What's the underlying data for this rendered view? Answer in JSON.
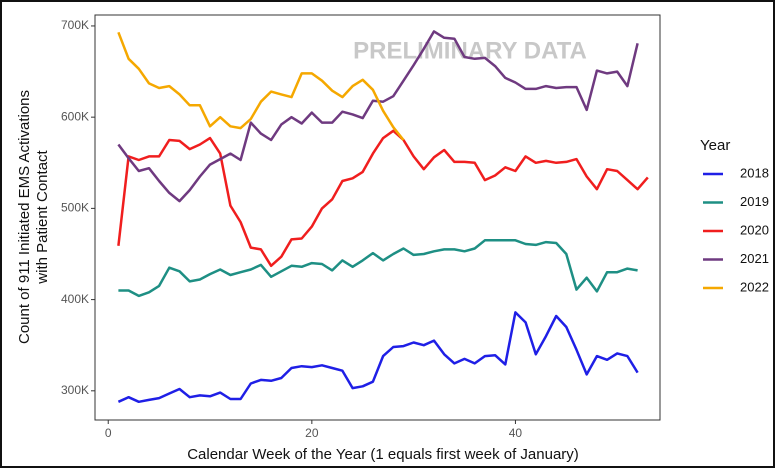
{
  "chart_data": {
    "type": "line",
    "annotation": "PRELIMINARY DATA",
    "x_label": "Calendar Week of the Year (1 equals first week of January)",
    "y_label": [
      "Count of 911 Initiated EMS Activations",
      "with Patient Contact"
    ],
    "legend_title": "Year",
    "x": [
      1,
      2,
      3,
      4,
      5,
      6,
      7,
      8,
      9,
      10,
      11,
      12,
      13,
      14,
      15,
      16,
      17,
      18,
      19,
      20,
      21,
      22,
      23,
      24,
      25,
      26,
      27,
      28,
      29,
      30,
      31,
      32,
      33,
      34,
      35,
      36,
      37,
      38,
      39,
      40,
      41,
      42,
      43,
      44,
      45,
      46,
      47,
      48,
      49,
      50,
      51,
      52,
      53
    ],
    "xlim": [
      -1.3,
      54.2
    ],
    "xticks": [
      0,
      20,
      40
    ],
    "ylim": [
      268000,
      712000
    ],
    "yticks": [
      {
        "value": 300000,
        "label": "300K"
      },
      {
        "value": 400000,
        "label": "400K"
      },
      {
        "value": 500000,
        "label": "500K"
      },
      {
        "value": 600000,
        "label": "600K"
      },
      {
        "value": 700000,
        "label": "700K"
      }
    ],
    "series": [
      {
        "name": "2018",
        "color": "#1f1fe6",
        "values": [
          288000,
          293000,
          288000,
          290000,
          292000,
          297000,
          302000,
          293000,
          295000,
          294000,
          298000,
          291000,
          291000,
          308000,
          312000,
          311000,
          314000,
          325000,
          327000,
          326000,
          328000,
          325000,
          322000,
          303000,
          305000,
          310000,
          338000,
          348000,
          349000,
          353000,
          350000,
          355000,
          340000,
          330000,
          335000,
          330000,
          338000,
          339000,
          329000,
          386000,
          375000,
          340000,
          360000,
          382000,
          370000,
          345000,
          318000,
          338000,
          334000,
          341000,
          338000,
          320000,
          null
        ]
      },
      {
        "name": "2019",
        "color": "#1e8f84",
        "values": [
          410000,
          410000,
          404000,
          408000,
          415000,
          435000,
          431000,
          420000,
          422000,
          428000,
          433000,
          427000,
          430000,
          433000,
          438000,
          425000,
          431000,
          437000,
          436000,
          440000,
          439000,
          432000,
          443000,
          436000,
          443000,
          451000,
          443000,
          450000,
          456000,
          449000,
          450000,
          453000,
          455000,
          455000,
          453000,
          456000,
          465000,
          465000,
          465000,
          465000,
          461000,
          460000,
          463000,
          462000,
          450000,
          411000,
          424000,
          409000,
          430000,
          430000,
          434000,
          432000,
          null
        ]
      },
      {
        "name": "2020",
        "color": "#f01e1e",
        "values": [
          459000,
          557000,
          553000,
          557000,
          557000,
          575000,
          574000,
          565000,
          570000,
          577000,
          560000,
          503000,
          485000,
          457000,
          455000,
          437000,
          447000,
          466000,
          467000,
          480000,
          500000,
          510000,
          530000,
          533000,
          540000,
          560000,
          577000,
          585000,
          575000,
          557000,
          543000,
          556000,
          564000,
          551000,
          551000,
          550000,
          531000,
          536000,
          545000,
          541000,
          557000,
          550000,
          552000,
          550000,
          551000,
          554000,
          535000,
          521000,
          543000,
          541000,
          531000,
          521000,
          534000
        ]
      },
      {
        "name": "2021",
        "color": "#6f3a80",
        "values": [
          570000,
          555000,
          541000,
          544000,
          530000,
          517000,
          508000,
          520000,
          535000,
          548000,
          554000,
          560000,
          553000,
          594000,
          582000,
          575000,
          592000,
          600000,
          593000,
          605000,
          594000,
          594000,
          606000,
          603000,
          599000,
          618000,
          617000,
          623000,
          640000,
          657000,
          675000,
          694000,
          687000,
          686000,
          666000,
          664000,
          665000,
          656000,
          643000,
          638000,
          631000,
          631000,
          634000,
          632000,
          633000,
          633000,
          608000,
          651000,
          648000,
          650000,
          634000,
          681000,
          null
        ]
      },
      {
        "name": "2022",
        "color": "#f5a800",
        "values": [
          693000,
          664000,
          653000,
          637000,
          632000,
          634000,
          625000,
          613000,
          613000,
          590000,
          600000,
          590000,
          588000,
          598000,
          617000,
          628000,
          625000,
          622000,
          648000,
          648000,
          640000,
          629000,
          622000,
          634000,
          641000,
          630000,
          607000,
          589000,
          575000,
          null,
          null,
          null,
          null,
          null,
          null,
          null,
          null,
          null,
          null,
          null,
          null,
          null,
          null,
          null,
          null,
          null,
          null,
          null,
          null,
          null,
          null,
          null,
          null
        ]
      }
    ]
  }
}
